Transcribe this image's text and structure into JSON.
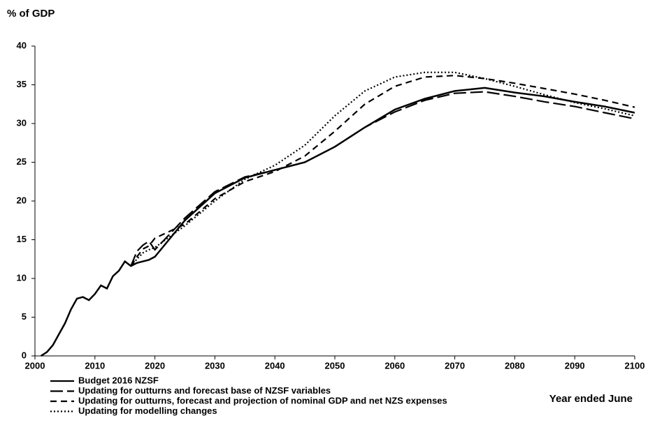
{
  "chart_data": {
    "type": "line",
    "y_label": "% of GDP",
    "x_label": "Year ended June",
    "x": [
      2001,
      2002,
      2003,
      2004,
      2005,
      2006,
      2007,
      2008,
      2009,
      2010,
      2011,
      2012,
      2013,
      2014,
      2015,
      2016,
      2017,
      2018,
      2019,
      2020,
      2025,
      2030,
      2035,
      2040,
      2045,
      2050,
      2055,
      2060,
      2065,
      2070,
      2075,
      2080,
      2085,
      2090,
      2095,
      2100
    ],
    "series": [
      {
        "name": "Budget 2016 NZSF",
        "color": "#000000",
        "style": "solid",
        "values": [
          0,
          0.5,
          1.4,
          2.8,
          4.2,
          6,
          7.4,
          7.6,
          7.2,
          8,
          9.1,
          8.7,
          10.3,
          11,
          12.2,
          11.6,
          12,
          12.2,
          12.4,
          12.8,
          17.5,
          21,
          23,
          24,
          25,
          27,
          29.5,
          31.8,
          33.2,
          34.2,
          34.6,
          34,
          33.5,
          32.8,
          32.2,
          31.4
        ]
      },
      {
        "name": "Updating for outturns and forecast base of NZSF variables",
        "color": "#000000",
        "style": "longdash",
        "values": [
          null,
          null,
          null,
          null,
          null,
          null,
          null,
          null,
          null,
          null,
          null,
          null,
          null,
          null,
          null,
          11.6,
          13.5,
          14.3,
          14.8,
          13.7,
          17.8,
          21.2,
          23.1,
          24,
          25,
          27,
          29.5,
          31.5,
          33,
          33.9,
          34.1,
          33.5,
          32.8,
          32.2,
          31.4,
          30.6
        ]
      },
      {
        "name": "Updating for outturns, forecast and projection of nominal GDP and net NZS expenses",
        "color": "#000000",
        "style": "dash",
        "values": [
          null,
          null,
          null,
          null,
          null,
          null,
          null,
          null,
          null,
          null,
          null,
          null,
          null,
          null,
          null,
          11.6,
          12.8,
          13.8,
          14.2,
          15.2,
          17,
          20.3,
          22.5,
          23.8,
          25.8,
          29,
          32.5,
          34.8,
          36,
          36.2,
          35.8,
          35.2,
          34.5,
          33.8,
          33,
          32.1
        ]
      },
      {
        "name": "Updating for modelling changes",
        "color": "#000000",
        "style": "dot",
        "values": [
          null,
          null,
          null,
          null,
          null,
          null,
          null,
          null,
          null,
          null,
          null,
          null,
          null,
          null,
          null,
          11.6,
          12.5,
          13.3,
          13.7,
          14,
          16.8,
          20,
          22.8,
          24.6,
          27.2,
          31,
          34.2,
          36,
          36.6,
          36.6,
          35.8,
          34.8,
          33.7,
          32.7,
          31.9,
          31
        ]
      }
    ],
    "xlim": [
      2000,
      2100
    ],
    "xticks": [
      2000,
      2010,
      2020,
      2030,
      2040,
      2050,
      2060,
      2070,
      2080,
      2090,
      2100
    ],
    "ylim": [
      0,
      40
    ],
    "yticks": [
      0,
      5,
      10,
      15,
      20,
      25,
      30,
      35,
      40
    ],
    "grid": false,
    "legend": "bottom-left"
  }
}
